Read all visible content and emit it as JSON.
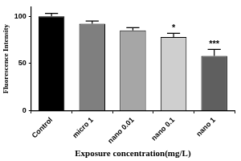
{
  "chart_data": {
    "type": "bar",
    "x_label": "Exposure concentration(mg/L)",
    "y_label": "Fluorescence Intensity",
    "categories": [
      "Control",
      "micro 1",
      "nano 0.01",
      "nano 0.1",
      "nano 1"
    ],
    "values": [
      100,
      92,
      85,
      78,
      58
    ],
    "errors": [
      3,
      3,
      3,
      4,
      7
    ],
    "colors": [
      "#000000",
      "#7f7f7f",
      "#a6a6a6",
      "#cfcfcf",
      "#5f5f5f"
    ],
    "annotations": [
      {
        "category": "nano 0.1",
        "text": "*"
      },
      {
        "category": "nano 1",
        "text": "***"
      }
    ],
    "ylim": [
      0,
      110
    ],
    "yticks": [
      0,
      50,
      100
    ],
    "grid": false
  }
}
